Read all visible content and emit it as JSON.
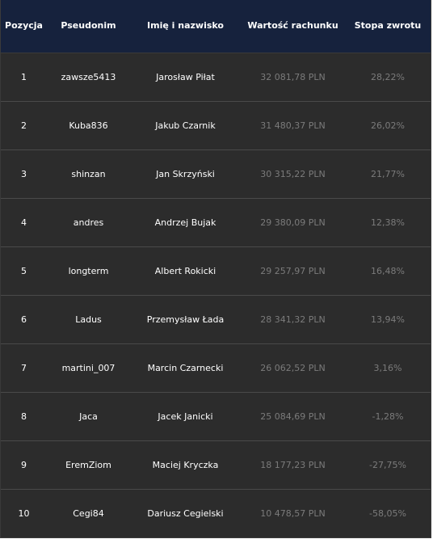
{
  "headers": {
    "position": "Pozycja",
    "nickname": "Pseudonim",
    "name": "Imię i nazwisko",
    "account_value": "Wartość rachunku",
    "return_rate": "Stopa zwrotu"
  },
  "rows": [
    {
      "position": "1",
      "nickname": "zawsze5413",
      "name": "Jarosław Piłat",
      "account_value": "32 081,78 PLN",
      "return_rate": "28,22%"
    },
    {
      "position": "2",
      "nickname": "Kuba836",
      "name": "Jakub Czarnik",
      "account_value": "31 480,37 PLN",
      "return_rate": "26,02%"
    },
    {
      "position": "3",
      "nickname": "shinzan",
      "name": "Jan Skrzyński",
      "account_value": "30 315,22 PLN",
      "return_rate": "21,77%"
    },
    {
      "position": "4",
      "nickname": "andres",
      "name": "Andrzej Bujak",
      "account_value": "29 380,09 PLN",
      "return_rate": "12,38%"
    },
    {
      "position": "5",
      "nickname": "longterm",
      "name": "Albert Rokicki",
      "account_value": "29 257,97 PLN",
      "return_rate": "16,48%"
    },
    {
      "position": "6",
      "nickname": "Ladus",
      "name": "Przemysław Łada",
      "account_value": "28 341,32 PLN",
      "return_rate": "13,94%"
    },
    {
      "position": "7",
      "nickname": "martini_007",
      "name": "Marcin Czarnecki",
      "account_value": "26 062,52 PLN",
      "return_rate": "3,16%"
    },
    {
      "position": "8",
      "nickname": "Jaca",
      "name": "Jacek Janicki",
      "account_value": "25 084,69 PLN",
      "return_rate": "-1,28%"
    },
    {
      "position": "9",
      "nickname": "EremZiom",
      "name": "Maciej Kryczka",
      "account_value": "18 177,23 PLN",
      "return_rate": "-27,75%"
    },
    {
      "position": "10",
      "nickname": "Cegi84",
      "name": "Dariusz Cegielski",
      "account_value": "10 478,57 PLN",
      "return_rate": "-58,05%"
    }
  ],
  "colors": {
    "header_bg": "#16223d",
    "row_bg": "#2c2c2c",
    "primary_text": "#ffffff",
    "muted_text": "#7b7b7b"
  }
}
